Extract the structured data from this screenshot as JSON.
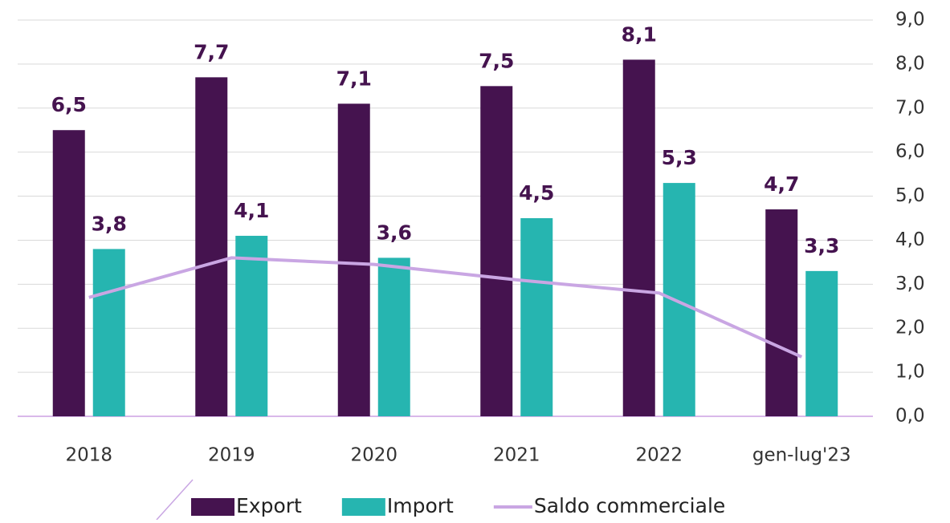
{
  "chart_data": {
    "type": "bar",
    "categories": [
      "2018",
      "2019",
      "2020",
      "2021",
      "2022",
      "gen-lug'23"
    ],
    "series": [
      {
        "name": "Export",
        "type": "bar",
        "color": "#45134f",
        "values": [
          6.5,
          7.7,
          7.1,
          7.5,
          8.1,
          4.7
        ],
        "value_labels": [
          "6,5",
          "7,7",
          "7,1",
          "7,5",
          "8,1",
          "4,7"
        ]
      },
      {
        "name": "Import",
        "type": "bar",
        "color": "#26b5b0",
        "values": [
          3.8,
          4.1,
          3.6,
          4.5,
          5.3,
          3.3
        ],
        "value_labels": [
          "3,8",
          "4,1",
          "3,6",
          "4,5",
          "5,3",
          "3,3"
        ]
      },
      {
        "name": "Saldo commerciale",
        "type": "line",
        "color": "#c9a6e3",
        "values": [
          2.7,
          3.6,
          3.45,
          3.1,
          2.8,
          1.35
        ]
      }
    ],
    "ylim": [
      0,
      9
    ],
    "yticks": [
      {
        "value": 0,
        "label": "0,0"
      },
      {
        "value": 1,
        "label": "1,0"
      },
      {
        "value": 2,
        "label": "2,0"
      },
      {
        "value": 3,
        "label": "3,0"
      },
      {
        "value": 4,
        "label": "4,0"
      },
      {
        "value": 5,
        "label": "5,0"
      },
      {
        "value": 6,
        "label": "6,0"
      },
      {
        "value": 7,
        "label": "7,0"
      },
      {
        "value": 8,
        "label": "8,0"
      },
      {
        "value": 9,
        "label": "9,0"
      }
    ],
    "grid": true,
    "legend": "bottom"
  }
}
